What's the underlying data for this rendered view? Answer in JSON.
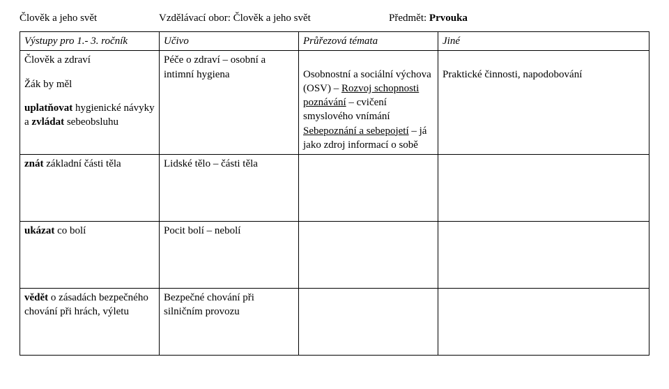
{
  "header": {
    "area_label": "Člověk a jeho svět",
    "obor_label": "Vzdělávací obor: Člověk a jeho svět",
    "predmet_label": "Předmět: ",
    "predmet_value": "Prvouka"
  },
  "columns": {
    "c1": "Výstupy pro 1.- 3. ročník",
    "c2": "Učivo",
    "c3": "Průřezová témata",
    "c4": "Jiné"
  },
  "rows": {
    "r1": {
      "c1_a": "Člověk a zdraví",
      "c1_b": "Žák by měl",
      "c1_c_pre": "uplatňovat",
      "c1_c_mid": " hygienické návyky a ",
      "c1_c_bold": "zvládat",
      "c1_c_post": " sebeobsluhu",
      "c2": "Péče o zdraví – osobní a intimní hygiena",
      "c3_pre": "Osobnostní a sociální výchova (OSV) – ",
      "c3_u1": "Rozvoj schopnosti poznávání",
      "c3_mid": " – cvičení smyslového vnímání ",
      "c3_u2": "Sebepoznání a sebepojetí",
      "c3_post": " – já jako zdroj informací o sobě",
      "c4": "Praktické činnosti, napodobování"
    },
    "r2": {
      "c1_bold": "znát",
      "c1_rest": " základní části těla",
      "c2": "Lidské tělo – části těla"
    },
    "r3": {
      "c1_bold": "ukázat",
      "c1_rest": " co bolí",
      "c2": "Pocit bolí – nebolí"
    },
    "r4": {
      "c1_bold": "vědět",
      "c1_rest": " o zásadách bezpečného chování při hrách, výletu",
      "c2": "Bezpečné chování při silničním provozu"
    }
  },
  "style": {
    "font_family": "Times New Roman",
    "font_size_pt": 12,
    "border_color": "#000000",
    "background_color": "#ffffff",
    "text_color": "#000000"
  }
}
